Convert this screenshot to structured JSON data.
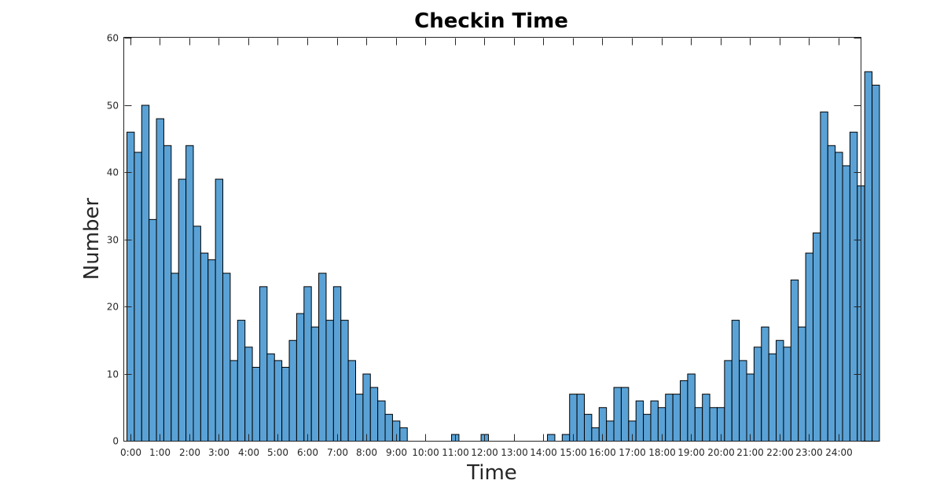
{
  "chart_data": {
    "type": "bar",
    "title": "Checkin Time",
    "xlabel": "Time",
    "ylabel": "Number",
    "bar_color": "#5aa2d6",
    "bar_edge_color": "#000000",
    "grid": false,
    "xlim": [
      0,
      24
    ],
    "ylim": [
      0,
      60
    ],
    "bin_width_hours": 0.25,
    "x_ticks": [
      0,
      1,
      2,
      3,
      4,
      5,
      6,
      7,
      8,
      9,
      10,
      11,
      12,
      13,
      14,
      15,
      16,
      17,
      18,
      19,
      20,
      21,
      22,
      23,
      24
    ],
    "x_tick_labels": [
      "0:00",
      "1:00",
      "2:00",
      "3:00",
      "4:00",
      "5:00",
      "6:00",
      "7:00",
      "8:00",
      "9:00",
      "10:00",
      "11:00",
      "12:00",
      "13:00",
      "14:00",
      "15:00",
      "16:00",
      "17:00",
      "18:00",
      "19:00",
      "20:00",
      "21:00",
      "22:00",
      "23:00",
      "24:00"
    ],
    "y_ticks": [
      0,
      10,
      20,
      30,
      40,
      50,
      60
    ],
    "y_tick_labels": [
      "0",
      "10",
      "20",
      "30",
      "40",
      "50",
      "60"
    ],
    "values": [
      46,
      43,
      50,
      33,
      48,
      44,
      25,
      39,
      44,
      32,
      28,
      27,
      39,
      25,
      12,
      18,
      14,
      11,
      23,
      13,
      12,
      11,
      15,
      19,
      23,
      17,
      25,
      18,
      23,
      18,
      12,
      7,
      10,
      8,
      6,
      4,
      3,
      2,
      0,
      0,
      0,
      0,
      0,
      0,
      1,
      0,
      0,
      0,
      1,
      0,
      0,
      0,
      0,
      0,
      0,
      0,
      0,
      1,
      0,
      1,
      7,
      7,
      4,
      2,
      5,
      3,
      8,
      8,
      3,
      6,
      4,
      6,
      5,
      7,
      7,
      9,
      10,
      5,
      7,
      5,
      5,
      12,
      18,
      12,
      10,
      14,
      17,
      13,
      15,
      14,
      24,
      17,
      28,
      31,
      49,
      44,
      43,
      41,
      46,
      38,
      55,
      53
    ]
  }
}
